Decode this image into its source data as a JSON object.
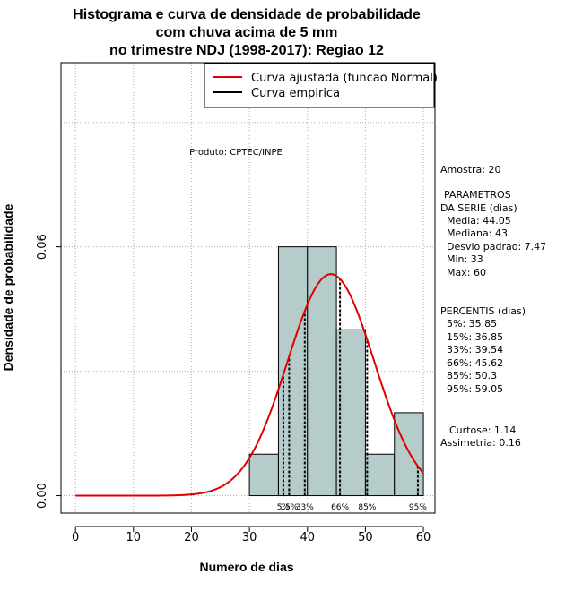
{
  "chart_data": {
    "type": "bar",
    "title_lines": [
      "Histograma e curva de densidade de probabilidade",
      "com chuva acima de 5 mm",
      "no trimestre NDJ (1998-2017): Regiao 12"
    ],
    "xlabel": "Numero de dias",
    "ylabel": "Densidade de probabilidade",
    "xlim": [
      -2.5,
      62
    ],
    "ylim": [
      -0.0042,
      0.1044
    ],
    "x_ticks": [
      0,
      10,
      20,
      30,
      40,
      50,
      60
    ],
    "x_tick_labels": [
      "0",
      "10",
      "20",
      "30",
      "40",
      "50",
      "60"
    ],
    "y_ticks": [
      0.0,
      0.06
    ],
    "y_tick_labels": [
      "0.00",
      "0.06"
    ],
    "grid": true,
    "bins": [
      {
        "x0": 30,
        "x1": 35,
        "density": 0.01
      },
      {
        "x0": 35,
        "x1": 40,
        "density": 0.06
      },
      {
        "x0": 40,
        "x1": 45,
        "density": 0.06
      },
      {
        "x0": 45,
        "x1": 50,
        "density": 0.04
      },
      {
        "x0": 50,
        "x1": 55,
        "density": 0.01
      },
      {
        "x0": 55,
        "x1": 60,
        "density": 0.02
      }
    ],
    "normal_fit": {
      "mean": 44.05,
      "sd": 7.47,
      "x_from": 0,
      "x_to": 60
    },
    "percentiles": [
      {
        "label": "5%",
        "value": 35.85
      },
      {
        "label": "15%",
        "value": 36.85
      },
      {
        "label": "33%",
        "value": 39.54
      },
      {
        "label": "66%",
        "value": 45.62
      },
      {
        "label": "85%",
        "value": 50.3
      },
      {
        "label": "95%",
        "value": 59.05
      }
    ],
    "legend": {
      "position": "top-right",
      "entries": [
        {
          "label": "Curva ajustada (funcao Normal)",
          "color": "#e00000"
        },
        {
          "label": "Curva empirica",
          "color": "#000000"
        }
      ]
    },
    "annotation": "Produto: CPTEC/INPE",
    "bar_color": "#b5cccb",
    "curve_color": "#e00000"
  },
  "side_panel": {
    "amostra": "Amostra: 20",
    "param_title_1": "PARAMETROS",
    "param_title_2": "DA SERIE (dias)",
    "media": "Media: 44.05",
    "mediana": "Mediana: 43",
    "desvio": "Desvio padrao: 7.47",
    "min": "Min: 33",
    "max": "Max: 60",
    "pct_title": "PERCENTIS (dias)",
    "p5": "5%: 35.85",
    "p15": "15%: 36.85",
    "p33": "33%: 39.54",
    "p66": "66%: 45.62",
    "p85": "85%: 50.3",
    "p95": "95%: 59.05",
    "curtose": "Curtose: 1.14",
    "assimetria": "Assimetria: 0.16"
  }
}
